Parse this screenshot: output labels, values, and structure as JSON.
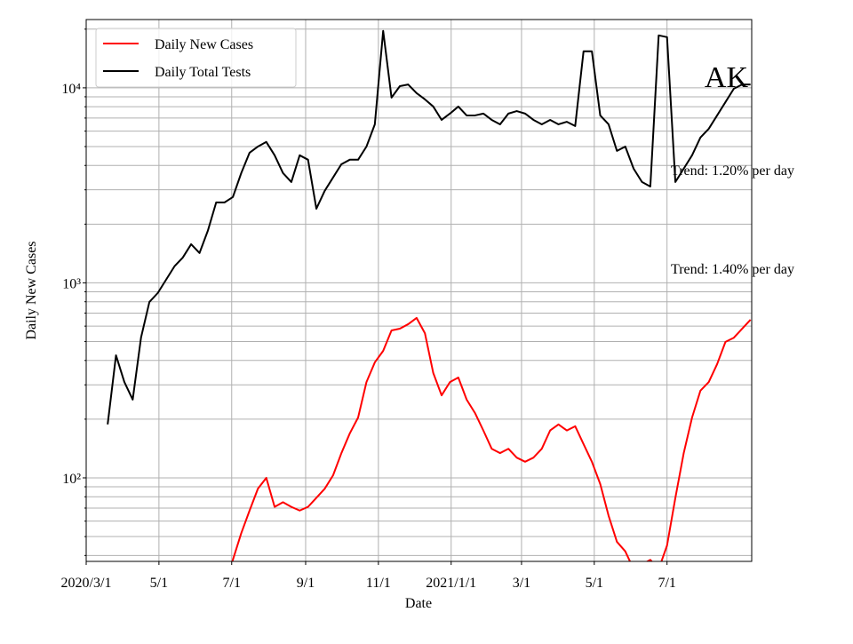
{
  "chart_data": {
    "type": "line",
    "title": "AK",
    "annotations": [
      "Trend: 1.20% per day",
      "Trend: 1.40% per day"
    ],
    "xlabel": "Date",
    "ylabel": "Daily New Cases",
    "log_y": true,
    "grid": true,
    "legend": "upper left",
    "x": [
      "2020-03-19",
      "2020-03-26",
      "2020-04-02",
      "2020-04-09",
      "2020-04-16",
      "2020-04-23",
      "2020-04-30",
      "2020-05-07",
      "2020-05-14",
      "2020-05-21",
      "2020-05-28",
      "2020-06-04",
      "2020-06-11",
      "2020-06-18",
      "2020-06-25",
      "2020-07-02",
      "2020-07-09",
      "2020-07-16",
      "2020-07-23",
      "2020-07-30",
      "2020-08-06",
      "2020-08-13",
      "2020-08-20",
      "2020-08-27",
      "2020-09-03",
      "2020-09-10",
      "2020-09-17",
      "2020-09-24",
      "2020-10-01",
      "2020-10-08",
      "2020-10-15",
      "2020-10-22",
      "2020-10-29",
      "2020-11-05",
      "2020-11-12",
      "2020-11-19",
      "2020-11-26",
      "2020-12-03",
      "2020-12-10",
      "2020-12-17",
      "2020-12-24",
      "2020-12-31",
      "2021-01-07",
      "2021-01-14",
      "2021-01-21",
      "2021-01-28",
      "2021-02-04",
      "2021-02-11",
      "2021-02-18",
      "2021-02-25",
      "2021-03-04",
      "2021-03-11",
      "2021-03-18",
      "2021-03-25",
      "2021-04-01",
      "2021-04-08",
      "2021-04-15",
      "2021-04-22",
      "2021-04-29",
      "2021-05-06",
      "2021-05-13",
      "2021-05-20",
      "2021-05-27",
      "2021-06-03",
      "2021-06-10",
      "2021-06-17",
      "2021-06-24",
      "2021-07-01",
      "2021-07-08",
      "2021-07-15",
      "2021-07-22",
      "2021-07-29",
      "2021-08-05",
      "2021-08-12",
      "2021-08-19",
      "2021-08-26",
      "2021-09-02",
      "2021-09-09"
    ],
    "series": [
      {
        "name": "Daily New Cases",
        "color": "#ff0000",
        "values": [
          null,
          null,
          null,
          null,
          null,
          null,
          null,
          null,
          null,
          null,
          null,
          null,
          null,
          null,
          30,
          38,
          52,
          68,
          88,
          100,
          71,
          75,
          71,
          68,
          71,
          79,
          88,
          103,
          134,
          169,
          204,
          310,
          391,
          448,
          570,
          582,
          614,
          661,
          552,
          345,
          265,
          310,
          327,
          252,
          215,
          175,
          141,
          134,
          141,
          127,
          121,
          127,
          141,
          175,
          188,
          175,
          184,
          149,
          121,
          93,
          64,
          47,
          42,
          34,
          36,
          38,
          34,
          45,
          79,
          134,
          204,
          280,
          310,
          383,
          498,
          523,
          582,
          647
        ]
      },
      {
        "name": "Daily Total Tests",
        "color": "#000000",
        "values": [
          188,
          425,
          310,
          252,
          525,
          798,
          887,
          1038,
          1215,
          1348,
          1578,
          1422,
          1850,
          2585,
          2585,
          2755,
          3655,
          4650,
          5000,
          5280,
          4510,
          3655,
          3290,
          4510,
          4280,
          2400,
          2965,
          3470,
          4060,
          4280,
          4280,
          5000,
          6500,
          19600,
          8910,
          10200,
          10400,
          9400,
          8730,
          8020,
          6850,
          7380,
          8020,
          7220,
          7220,
          7380,
          6850,
          6500,
          7380,
          7600,
          7380,
          6850,
          6500,
          6850,
          6500,
          6700,
          6370,
          15400,
          15400,
          7220,
          6500,
          4750,
          5000,
          3850,
          3290,
          3120,
          18580,
          18200,
          3290,
          3850,
          4510,
          5560,
          6170,
          7220,
          8450,
          9900,
          10400,
          10400
        ]
      }
    ],
    "xlim": [
      "2020-03-01",
      "2021-09-10"
    ],
    "xticks": [
      {
        "value": "2020-03-01",
        "label": "2020/3/1"
      },
      {
        "value": "2020-05-01",
        "label": "5/1"
      },
      {
        "value": "2020-07-01",
        "label": "7/1"
      },
      {
        "value": "2020-09-01",
        "label": "9/1"
      },
      {
        "value": "2020-11-01",
        "label": "11/1"
      },
      {
        "value": "2021-01-01",
        "label": "2021/1/1"
      },
      {
        "value": "2021-03-01",
        "label": "3/1"
      },
      {
        "value": "2021-05-01",
        "label": "5/1"
      },
      {
        "value": "2021-07-01",
        "label": "7/1"
      }
    ],
    "ylim": [
      37.3,
      22400
    ],
    "yticks": [
      {
        "value": 100,
        "label": "10²"
      },
      {
        "value": 1000,
        "label": "10³"
      },
      {
        "value": 10000,
        "label": "10⁴"
      }
    ],
    "yminor_ticks": [
      40,
      50,
      60,
      70,
      80,
      90,
      200,
      300,
      400,
      500,
      600,
      700,
      800,
      900,
      2000,
      3000,
      4000,
      5000,
      6000,
      7000,
      8000,
      9000,
      20000
    ]
  }
}
